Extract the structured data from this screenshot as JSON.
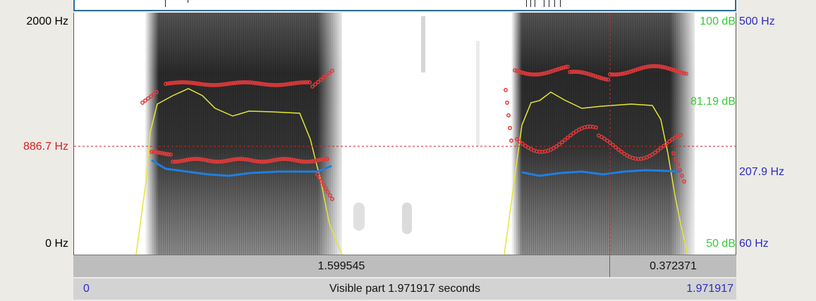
{
  "left_axis": {
    "top_label": "2000 Hz",
    "cursor_label": "886.7 Hz",
    "bottom_label": "0 Hz"
  },
  "right_axis": {
    "db_top": "100 dB",
    "db_mid": "81.19 dB",
    "db_bottom": "50 dB",
    "pitch_top": "500 Hz",
    "pitch_mid": "207.9 Hz",
    "pitch_bottom": "60 Hz"
  },
  "duration_bar": {
    "left_segment": "1.599545",
    "right_segment": "0.372371"
  },
  "visible_bar": {
    "start": "0",
    "text": "Visible part 1.971917 seconds",
    "end": "1.971917"
  },
  "colors": {
    "formant": "#e23a3a",
    "pitch": "#1f7fe0",
    "intensity": "#e6e635",
    "cursor": "#d62020",
    "db_text": "#33cc33",
    "pitch_text": "#2b2bbf"
  }
}
